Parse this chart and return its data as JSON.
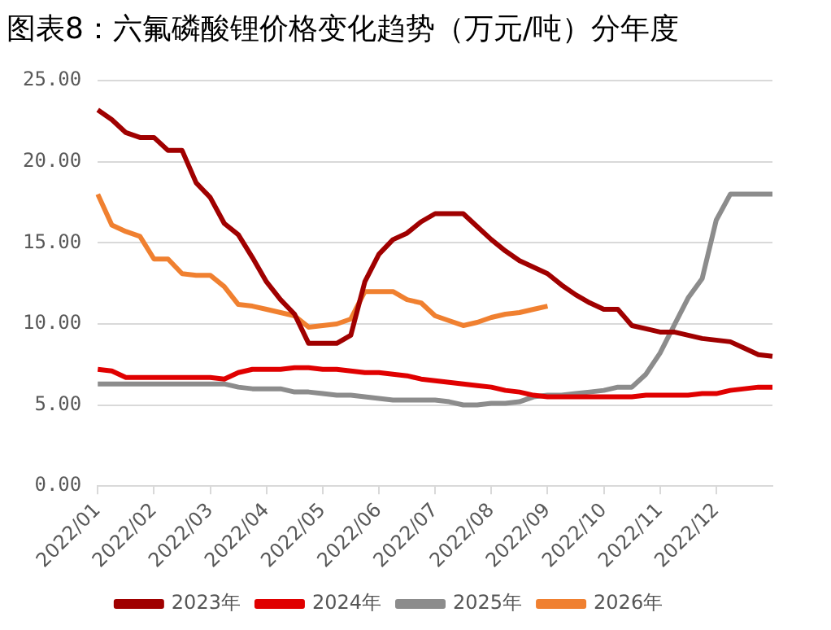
{
  "chart_data": {
    "type": "line",
    "title": "图表8：六氟磷酸锂价格变化趋势（万元/吨）分年度",
    "categories": [
      "2022/01",
      null,
      null,
      null,
      "2022/02",
      null,
      null,
      null,
      "2022/03",
      null,
      null,
      null,
      "2022/04",
      null,
      null,
      null,
      "2022/05",
      null,
      null,
      null,
      "2022/06",
      null,
      null,
      null,
      "2022/07",
      null,
      null,
      null,
      "2022/08",
      null,
      null,
      null,
      "2022/09",
      null,
      null,
      null,
      "2022/10",
      null,
      null,
      null,
      "2022/11",
      null,
      null,
      null,
      "2022/12",
      null,
      null,
      null,
      null
    ],
    "series": [
      {
        "name": "2023年",
        "color": "#a00000",
        "values": [
          23.2,
          22.6,
          21.8,
          21.5,
          21.5,
          20.7,
          20.7,
          18.7,
          17.8,
          16.2,
          15.5,
          14.1,
          12.6,
          11.5,
          10.6,
          8.8,
          8.8,
          8.8,
          9.3,
          12.6,
          14.3,
          15.2,
          15.6,
          16.3,
          16.8,
          16.8,
          16.8,
          16.0,
          15.2,
          14.5,
          13.9,
          13.5,
          13.1,
          12.4,
          11.8,
          11.3,
          10.9,
          10.9,
          9.9,
          9.7,
          9.5,
          9.5,
          9.3,
          9.1,
          9.0,
          8.9,
          8.5,
          8.1,
          8.0
        ]
      },
      {
        "name": "2024年",
        "color": "#e00000",
        "values": [
          7.2,
          7.1,
          6.7,
          6.7,
          6.7,
          6.7,
          6.7,
          6.7,
          6.7,
          6.6,
          7.0,
          7.2,
          7.2,
          7.2,
          7.3,
          7.3,
          7.2,
          7.2,
          7.1,
          7.0,
          7.0,
          6.9,
          6.8,
          6.6,
          6.5,
          6.4,
          6.3,
          6.2,
          6.1,
          5.9,
          5.8,
          5.6,
          5.5,
          5.5,
          5.5,
          5.5,
          5.5,
          5.5,
          5.5,
          5.6,
          5.6,
          5.6,
          5.6,
          5.7,
          5.7,
          5.9,
          6.0,
          6.1,
          6.1
        ]
      },
      {
        "name": "2025年",
        "color": "#8c8c8c",
        "values": [
          6.3,
          6.3,
          6.3,
          6.3,
          6.3,
          6.3,
          6.3,
          6.3,
          6.3,
          6.3,
          6.1,
          6.0,
          6.0,
          6.0,
          5.8,
          5.8,
          5.7,
          5.6,
          5.6,
          5.5,
          5.4,
          5.3,
          5.3,
          5.3,
          5.3,
          5.2,
          5.0,
          5.0,
          5.1,
          5.1,
          5.2,
          5.5,
          5.6,
          5.6,
          5.7,
          5.8,
          5.9,
          6.1,
          6.1,
          6.9,
          8.2,
          9.9,
          11.6,
          12.8,
          16.4,
          18.0,
          18.0,
          18.0,
          18.0
        ]
      },
      {
        "name": "2026年",
        "color": "#f08030",
        "values": [
          18.0,
          16.1,
          15.7,
          15.4,
          14.0,
          14.0,
          13.1,
          13.0,
          13.0,
          12.3,
          11.2,
          11.1,
          10.9,
          10.7,
          10.5,
          9.8,
          9.9,
          10.0,
          10.3,
          12.0,
          12.0,
          12.0,
          11.5,
          11.3,
          10.5,
          10.2,
          9.9,
          10.1,
          10.4,
          10.6,
          10.7,
          10.9,
          11.1,
          null,
          null,
          null,
          null,
          null,
          null,
          null,
          null,
          null,
          null,
          null,
          null,
          null,
          null,
          null,
          null
        ]
      }
    ],
    "ylim": [
      0,
      25
    ],
    "yticks": [
      {
        "value": 0,
        "label": "0.00"
      },
      {
        "value": 5,
        "label": "5.00"
      },
      {
        "value": 10,
        "label": "10.00"
      },
      {
        "value": 15,
        "label": "15.00"
      },
      {
        "value": 20,
        "label": "20.00"
      },
      {
        "value": 25,
        "label": "25.00"
      }
    ],
    "grid": "y",
    "legend": "bottom",
    "marker": "none",
    "line_style": "solid"
  }
}
